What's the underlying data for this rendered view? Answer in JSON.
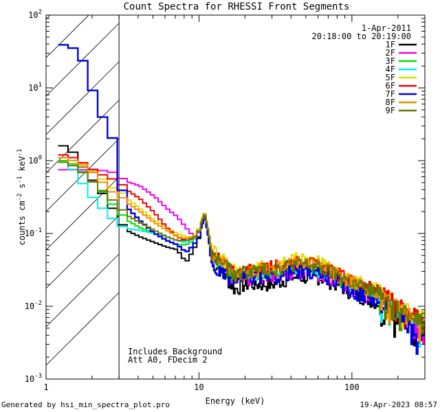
{
  "chart_data": {
    "type": "line",
    "title": "Count Spectra for RHESSI Front Segments",
    "xlabel": "Energy (keV)",
    "ylabel_parts": [
      "counts cm",
      "-2",
      " s",
      "-1",
      " keV",
      "-1"
    ],
    "x_scale": "log",
    "y_scale": "log",
    "xlim": [
      1,
      300
    ],
    "ylim": [
      0.001,
      100
    ],
    "x_ticks": [
      {
        "v": 1,
        "label": "1"
      },
      {
        "v": 10,
        "label": "10"
      },
      {
        "v": 100,
        "label": "100"
      }
    ],
    "y_ticks": [
      {
        "v": 0.001,
        "base": "10",
        "exp": "-3"
      },
      {
        "v": 0.01,
        "base": "10",
        "exp": "-2"
      },
      {
        "v": 0.1,
        "base": "10",
        "exp": "-1"
      },
      {
        "v": 1,
        "base": "10",
        "exp": "0"
      },
      {
        "v": 10,
        "base": "10",
        "exp": "1"
      },
      {
        "v": 100,
        "base": "10",
        "exp": "2"
      }
    ],
    "shaded_region": {
      "from": 1,
      "to": 3
    },
    "date": "1-Apr-2011",
    "time_range": "20:18:00 to 20:19:00",
    "annotations": [
      "Includes Background",
      "Att A0, FDecim 2"
    ],
    "series": [
      {
        "name": "1F",
        "color": "#000000",
        "lo": [
          [
            1.2,
            1.6
          ],
          [
            1.4,
            1.3
          ],
          [
            1.6,
            0.85
          ],
          [
            1.8,
            0.6
          ],
          [
            2.0,
            0.45
          ],
          [
            2.3,
            0.3
          ],
          [
            2.6,
            0.2
          ],
          [
            3.0,
            0.12
          ],
          [
            4.0,
            0.09
          ],
          [
            5.0,
            0.075
          ],
          [
            6.0,
            0.065
          ],
          [
            7.0,
            0.06
          ],
          [
            8.0,
            0.04
          ],
          [
            9.0,
            0.06
          ],
          [
            10.0,
            0.1
          ],
          [
            10.8,
            0.18
          ],
          [
            11.5,
            0.08
          ],
          [
            12.0,
            0.04
          ],
          [
            14.0,
            0.03
          ],
          [
            17.0,
            0.017
          ],
          [
            20.0,
            0.02
          ],
          [
            25.0,
            0.02
          ],
          [
            30.0,
            0.02
          ],
          [
            40.0,
            0.025
          ],
          [
            50.0,
            0.025
          ],
          [
            60.0,
            0.025
          ],
          [
            80.0,
            0.02
          ],
          [
            100.0,
            0.015
          ],
          [
            150.0,
            0.011
          ],
          [
            200.0,
            0.007
          ],
          [
            250.0,
            0.005
          ],
          [
            300.0,
            0.004
          ]
        ]
      },
      {
        "name": "2F",
        "color": "#ee00ee",
        "lo": [
          [
            1.2,
            0.75
          ],
          [
            1.5,
            0.75
          ],
          [
            2.0,
            0.75
          ],
          [
            2.5,
            0.7
          ],
          [
            3.0,
            0.55
          ],
          [
            4.0,
            0.45
          ],
          [
            5.0,
            0.32
          ],
          [
            6.0,
            0.22
          ],
          [
            7.0,
            0.17
          ],
          [
            8.0,
            0.12
          ],
          [
            9.0,
            0.09
          ],
          [
            10.0,
            0.11
          ],
          [
            10.8,
            0.19
          ],
          [
            11.5,
            0.1
          ],
          [
            12.0,
            0.05
          ],
          [
            14.0,
            0.035
          ],
          [
            17.0,
            0.022
          ],
          [
            20.0,
            0.025
          ],
          [
            25.0,
            0.025
          ],
          [
            30.0,
            0.025
          ],
          [
            40.0,
            0.03
          ],
          [
            50.0,
            0.03
          ],
          [
            60.0,
            0.028
          ],
          [
            80.0,
            0.022
          ],
          [
            100.0,
            0.017
          ],
          [
            150.0,
            0.012
          ],
          [
            200.0,
            0.008
          ],
          [
            250.0,
            0.006
          ],
          [
            300.0,
            0.005
          ]
        ]
      },
      {
        "name": "3F",
        "color": "#00dd00",
        "lo": [
          [
            1.2,
            1.0
          ],
          [
            1.4,
            0.9
          ],
          [
            1.6,
            0.72
          ],
          [
            1.8,
            0.55
          ],
          [
            2.0,
            0.45
          ],
          [
            2.3,
            0.33
          ],
          [
            2.6,
            0.23
          ],
          [
            3.0,
            0.17
          ],
          [
            4.0,
            0.12
          ],
          [
            5.0,
            0.1
          ],
          [
            6.0,
            0.08
          ],
          [
            7.0,
            0.07
          ],
          [
            8.0,
            0.07
          ],
          [
            9.0,
            0.08
          ],
          [
            10.0,
            0.12
          ],
          [
            10.8,
            0.19
          ],
          [
            11.5,
            0.09
          ],
          [
            12.0,
            0.05
          ],
          [
            14.0,
            0.038
          ],
          [
            17.0,
            0.026
          ],
          [
            20.0,
            0.028
          ],
          [
            25.0,
            0.03
          ],
          [
            30.0,
            0.03
          ],
          [
            40.0,
            0.035
          ],
          [
            50.0,
            0.035
          ],
          [
            60.0,
            0.033
          ],
          [
            80.0,
            0.025
          ],
          [
            100.0,
            0.02
          ],
          [
            150.0,
            0.014
          ],
          [
            200.0,
            0.009
          ],
          [
            250.0,
            0.007
          ],
          [
            300.0,
            0.006
          ]
        ]
      },
      {
        "name": "4F",
        "color": "#00eeee",
        "lo": [
          [
            1.2,
            1.1
          ],
          [
            1.4,
            0.75
          ],
          [
            1.6,
            0.5
          ],
          [
            1.8,
            0.35
          ],
          [
            2.0,
            0.26
          ],
          [
            2.3,
            0.2
          ],
          [
            2.6,
            0.15
          ],
          [
            3.0,
            0.12
          ],
          [
            4.0,
            0.11
          ],
          [
            5.0,
            0.1
          ],
          [
            6.0,
            0.09
          ],
          [
            7.0,
            0.08
          ],
          [
            8.0,
            0.075
          ],
          [
            9.0,
            0.085
          ],
          [
            10.0,
            0.12
          ],
          [
            10.8,
            0.17
          ],
          [
            11.5,
            0.09
          ],
          [
            12.0,
            0.05
          ],
          [
            14.0,
            0.035
          ],
          [
            17.0,
            0.025
          ],
          [
            20.0,
            0.027
          ],
          [
            25.0,
            0.03
          ],
          [
            30.0,
            0.03
          ],
          [
            40.0,
            0.035
          ],
          [
            50.0,
            0.035
          ],
          [
            60.0,
            0.032
          ],
          [
            80.0,
            0.025
          ],
          [
            100.0,
            0.02
          ],
          [
            150.0,
            0.013
          ],
          [
            200.0,
            0.009
          ],
          [
            250.0,
            0.006
          ],
          [
            300.0,
            0.005
          ]
        ]
      },
      {
        "name": "5F",
        "color": "#dddd00",
        "lo": [
          [
            1.2,
            1.1
          ],
          [
            1.4,
            1.0
          ],
          [
            1.6,
            0.85
          ],
          [
            1.8,
            0.75
          ],
          [
            2.0,
            0.65
          ],
          [
            2.3,
            0.5
          ],
          [
            2.6,
            0.4
          ],
          [
            3.0,
            0.35
          ],
          [
            4.0,
            0.22
          ],
          [
            5.0,
            0.15
          ],
          [
            6.0,
            0.12
          ],
          [
            7.0,
            0.1
          ],
          [
            8.0,
            0.09
          ],
          [
            9.0,
            0.09
          ],
          [
            10.0,
            0.13
          ],
          [
            10.8,
            0.2
          ],
          [
            11.5,
            0.1
          ],
          [
            12.0,
            0.06
          ],
          [
            14.0,
            0.045
          ],
          [
            17.0,
            0.03
          ],
          [
            20.0,
            0.033
          ],
          [
            25.0,
            0.035
          ],
          [
            30.0,
            0.035
          ],
          [
            40.0,
            0.045
          ],
          [
            50.0,
            0.045
          ],
          [
            60.0,
            0.04
          ],
          [
            80.0,
            0.03
          ],
          [
            100.0,
            0.023
          ],
          [
            150.0,
            0.017
          ],
          [
            200.0,
            0.011
          ],
          [
            250.0,
            0.008
          ],
          [
            300.0,
            0.007
          ]
        ]
      },
      {
        "name": "6F",
        "color": "#ee0000",
        "lo": [
          [
            1.2,
            1.2
          ],
          [
            1.4,
            1.1
          ],
          [
            1.6,
            0.95
          ],
          [
            1.8,
            0.8
          ],
          [
            2.0,
            0.7
          ],
          [
            2.3,
            0.6
          ],
          [
            2.6,
            0.55
          ],
          [
            3.0,
            0.45
          ],
          [
            4.0,
            0.3
          ],
          [
            5.0,
            0.19
          ],
          [
            6.0,
            0.12
          ],
          [
            7.0,
            0.09
          ],
          [
            8.0,
            0.08
          ],
          [
            9.0,
            0.09
          ],
          [
            10.0,
            0.12
          ],
          [
            10.8,
            0.2
          ],
          [
            11.5,
            0.1
          ],
          [
            12.0,
            0.055
          ],
          [
            14.0,
            0.04
          ],
          [
            17.0,
            0.028
          ],
          [
            20.0,
            0.03
          ],
          [
            25.0,
            0.033
          ],
          [
            30.0,
            0.035
          ],
          [
            40.0,
            0.04
          ],
          [
            50.0,
            0.04
          ],
          [
            60.0,
            0.036
          ],
          [
            80.0,
            0.028
          ],
          [
            100.0,
            0.022
          ],
          [
            150.0,
            0.016
          ],
          [
            200.0,
            0.011
          ],
          [
            250.0,
            0.008
          ],
          [
            300.0,
            0.006
          ]
        ]
      },
      {
        "name": "7F",
        "color": "#0000dd",
        "lo": [
          [
            1.2,
            39.0
          ],
          [
            1.4,
            35.0
          ],
          [
            1.6,
            25.0
          ],
          [
            1.8,
            12.0
          ],
          [
            2.0,
            6.0
          ],
          [
            2.3,
            3.0
          ],
          [
            2.6,
            1.8
          ],
          [
            3.0,
            0.28
          ],
          [
            4.0,
            0.15
          ],
          [
            5.0,
            0.1
          ],
          [
            6.0,
            0.08
          ],
          [
            7.0,
            0.07
          ],
          [
            8.0,
            0.055
          ],
          [
            9.0,
            0.07
          ],
          [
            10.0,
            0.1
          ],
          [
            10.8,
            0.17
          ],
          [
            11.5,
            0.08
          ],
          [
            12.0,
            0.035
          ],
          [
            14.0,
            0.028
          ],
          [
            17.0,
            0.022
          ],
          [
            20.0,
            0.025
          ],
          [
            25.0,
            0.025
          ],
          [
            30.0,
            0.025
          ],
          [
            40.0,
            0.03
          ],
          [
            50.0,
            0.03
          ],
          [
            60.0,
            0.028
          ],
          [
            80.0,
            0.022
          ],
          [
            100.0,
            0.016
          ],
          [
            150.0,
            0.012
          ],
          [
            200.0,
            0.008
          ],
          [
            250.0,
            0.005
          ],
          [
            300.0,
            0.004
          ]
        ]
      },
      {
        "name": "8F",
        "color": "#ff8800",
        "lo": [
          [
            1.2,
            1.1
          ],
          [
            1.4,
            1.0
          ],
          [
            1.6,
            0.9
          ],
          [
            1.8,
            0.75
          ],
          [
            2.0,
            0.6
          ],
          [
            2.3,
            0.45
          ],
          [
            2.6,
            0.35
          ],
          [
            3.0,
            0.3
          ],
          [
            4.0,
            0.2
          ],
          [
            5.0,
            0.14
          ],
          [
            6.0,
            0.11
          ],
          [
            7.0,
            0.09
          ],
          [
            8.0,
            0.085
          ],
          [
            9.0,
            0.09
          ],
          [
            10.0,
            0.12
          ],
          [
            10.8,
            0.2
          ],
          [
            11.5,
            0.1
          ],
          [
            12.0,
            0.055
          ],
          [
            14.0,
            0.042
          ],
          [
            17.0,
            0.028
          ],
          [
            20.0,
            0.03
          ],
          [
            25.0,
            0.033
          ],
          [
            30.0,
            0.033
          ],
          [
            40.0,
            0.04
          ],
          [
            50.0,
            0.04
          ],
          [
            60.0,
            0.036
          ],
          [
            80.0,
            0.028
          ],
          [
            100.0,
            0.022
          ],
          [
            150.0,
            0.015
          ],
          [
            200.0,
            0.01
          ],
          [
            250.0,
            0.008
          ],
          [
            300.0,
            0.006
          ]
        ]
      },
      {
        "name": "9F",
        "color": "#667700",
        "lo": [
          [
            1.2,
            0.95
          ],
          [
            1.4,
            0.85
          ],
          [
            1.6,
            0.7
          ],
          [
            1.8,
            0.55
          ],
          [
            2.0,
            0.45
          ],
          [
            2.3,
            0.35
          ],
          [
            2.6,
            0.27
          ],
          [
            3.0,
            0.2
          ],
          [
            4.0,
            0.14
          ],
          [
            5.0,
            0.11
          ],
          [
            6.0,
            0.09
          ],
          [
            7.0,
            0.08
          ],
          [
            8.0,
            0.08
          ],
          [
            9.0,
            0.085
          ],
          [
            10.0,
            0.12
          ],
          [
            10.8,
            0.19
          ],
          [
            11.5,
            0.095
          ],
          [
            12.0,
            0.05
          ],
          [
            14.0,
            0.04
          ],
          [
            17.0,
            0.027
          ],
          [
            20.0,
            0.03
          ],
          [
            25.0,
            0.032
          ],
          [
            30.0,
            0.032
          ],
          [
            40.0,
            0.038
          ],
          [
            50.0,
            0.038
          ],
          [
            60.0,
            0.034
          ],
          [
            80.0,
            0.027
          ],
          [
            100.0,
            0.021
          ],
          [
            150.0,
            0.015
          ],
          [
            200.0,
            0.01
          ],
          [
            250.0,
            0.007
          ],
          [
            300.0,
            0.006
          ]
        ]
      }
    ]
  },
  "footer": {
    "generated_by": "Generated by hsi_min_spectra_plot.pro",
    "timestamp": "19-Apr-2023 08:57"
  }
}
